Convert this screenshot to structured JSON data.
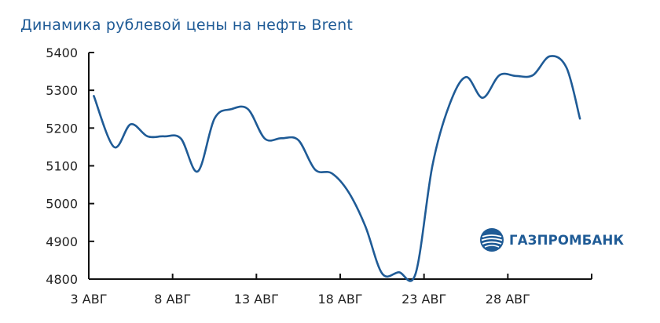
{
  "chart_data": {
    "type": "line",
    "title": "Динамика рублевой цены на нефть Brent",
    "xlabel": "",
    "ylabel": "",
    "ylim": [
      4800,
      5400
    ],
    "yticks": [
      4800,
      4900,
      5000,
      5100,
      5200,
      5300,
      5400
    ],
    "ytick_labels": [
      "4800",
      "4900",
      "5000",
      "5100",
      "5200",
      "5300",
      "5400"
    ],
    "xlim": [
      3,
      33
    ],
    "xticks": [
      3,
      8,
      13,
      18,
      23,
      28
    ],
    "xtick_labels": [
      "3 АВГ",
      "8 АВГ",
      "13 АВГ",
      "18 АВГ",
      "23 АВГ",
      "28 АВГ"
    ],
    "grid": false,
    "color": "#1f5b96",
    "series": [
      {
        "x": [
          3.3,
          4.5,
          5.5,
          6.5,
          7.5,
          8.5,
          9.5,
          10.5,
          11.5,
          12.5,
          13.5,
          14.5,
          15.5,
          16.5,
          17.5,
          18.5,
          19.5,
          20.5,
          21.5,
          22.5,
          23.5,
          24.5,
          25.5,
          26.5,
          27.5,
          28.5,
          29.5,
          30.5,
          31.5,
          32.3
        ],
        "values": [
          5285,
          5150,
          5210,
          5178,
          5178,
          5172,
          5085,
          5225,
          5250,
          5250,
          5172,
          5173,
          5168,
          5090,
          5080,
          5030,
          4940,
          4815,
          4818,
          4815,
          5100,
          5260,
          5335,
          5280,
          5340,
          5338,
          5340,
          5390,
          5360,
          5225
        ]
      }
    ]
  },
  "logo": {
    "text": "ГАЗПРОМБАНК",
    "icon": "gazprombank-globe-icon"
  }
}
